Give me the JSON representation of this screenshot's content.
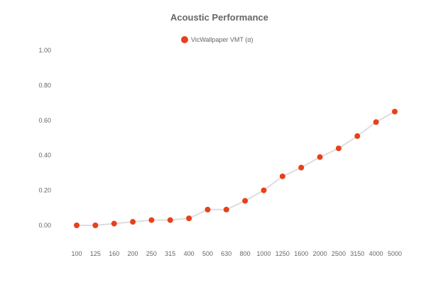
{
  "chart_data": {
    "type": "line",
    "title": "Acoustic Performance",
    "xlabel": "",
    "ylabel": "",
    "categories": [
      "100",
      "125",
      "160",
      "200",
      "250",
      "315",
      "400",
      "500",
      "630",
      "800",
      "1000",
      "1250",
      "1600",
      "2000",
      "2500",
      "3150",
      "4000",
      "5000"
    ],
    "series": [
      {
        "name": "VicWallpaper VMT (α)",
        "values": [
          0.0,
          0.0,
          0.01,
          0.02,
          0.03,
          0.03,
          0.04,
          0.09,
          0.09,
          0.14,
          0.2,
          0.28,
          0.33,
          0.39,
          0.44,
          0.51,
          0.59,
          0.65
        ]
      }
    ],
    "yticks": [
      "0.00",
      "0.20",
      "0.40",
      "0.60",
      "0.80",
      "1.00"
    ],
    "ylim": [
      0,
      1
    ],
    "grid": false,
    "legend": "top-center",
    "colors": {
      "marker": "#e8401c",
      "line": "#dddddd",
      "text": "#666666"
    }
  }
}
